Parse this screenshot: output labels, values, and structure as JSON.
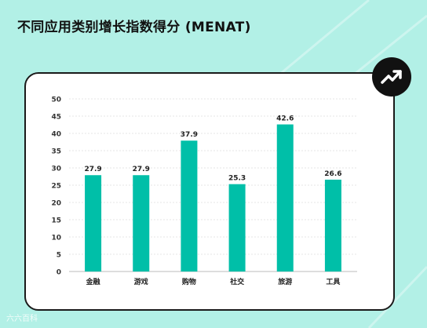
{
  "title": "不同应用类别增长指数得分 (MENAT)",
  "badge_icon": "trend-up-arrow-icon",
  "watermark": "六六百科",
  "colors": {
    "background": "#b2f0e6",
    "bar": "#00bfa8",
    "card": "#ffffff",
    "badge": "#111111"
  },
  "chart_data": {
    "type": "bar",
    "categories": [
      "金融",
      "游戏",
      "购物",
      "社交",
      "旅游",
      "工具"
    ],
    "values": [
      27.9,
      27.9,
      37.9,
      25.3,
      42.6,
      26.6
    ],
    "ylim": [
      0,
      50
    ],
    "yticks": [
      0,
      5,
      10,
      15,
      20,
      25,
      30,
      35,
      40,
      45,
      50
    ],
    "grid": true,
    "xlabel": "",
    "ylabel": ""
  }
}
